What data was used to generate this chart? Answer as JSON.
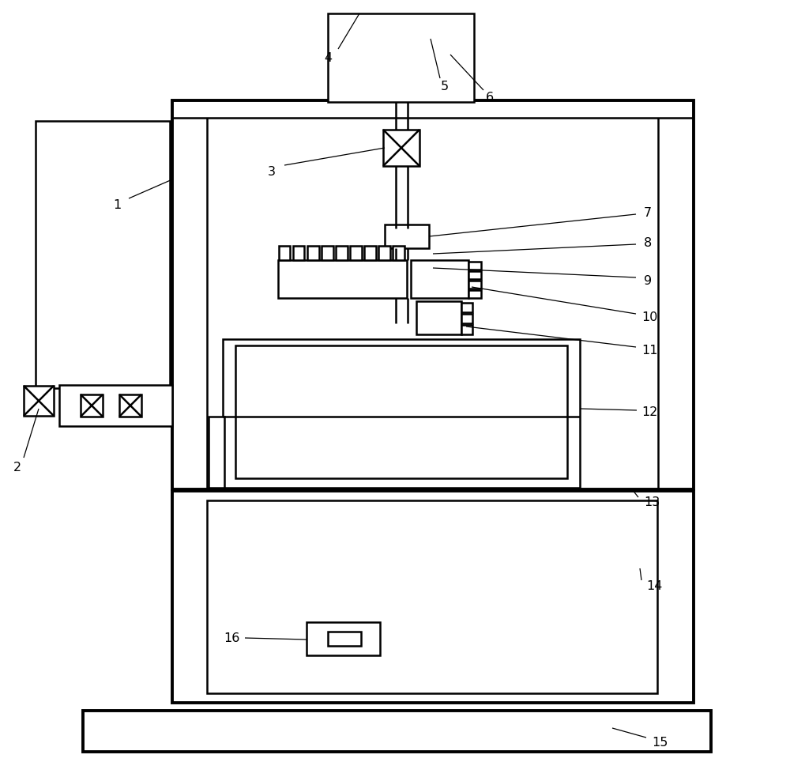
{
  "bg": "#ffffff",
  "lc": "#000000",
  "lw_thin": 1.2,
  "lw_med": 1.8,
  "lw_thick": 2.8,
  "lw_ref": 0.9,
  "label_fs": 11.5
}
